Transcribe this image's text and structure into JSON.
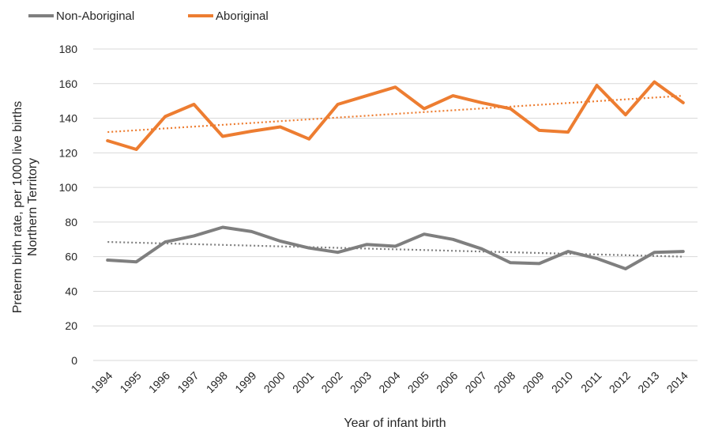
{
  "chart_data": {
    "type": "line",
    "title": "",
    "xlabel": "Year of infant birth",
    "ylabel": [
      "Preterm birth rate, per 1000 live births",
      "Northern Territory"
    ],
    "categories": [
      "1994",
      "1995",
      "1996",
      "1997",
      "1998",
      "1999",
      "2000",
      "2001",
      "2002",
      "2003",
      "2004",
      "2005",
      "2006",
      "2007",
      "2008",
      "2009",
      "2010",
      "2011",
      "2012",
      "2013",
      "2014"
    ],
    "ylim": [
      0,
      180
    ],
    "yticks": [
      "0",
      "20",
      "40",
      "60",
      "80",
      "100",
      "120",
      "140",
      "160",
      "180"
    ],
    "grid": true,
    "legend_position": "top-left",
    "series": [
      {
        "name": "Non-Aboriginal",
        "color": "#7f7f7f",
        "values": [
          58,
          57,
          68.5,
          72,
          77,
          74.5,
          69,
          65,
          62.5,
          67,
          66,
          73,
          70,
          64.5,
          56.5,
          56,
          63,
          59,
          53,
          62.5,
          63
        ],
        "trendline": {
          "style": "dotted",
          "start": 68.5,
          "end": 60
        }
      },
      {
        "name": "Aboriginal",
        "color": "#ed7d31",
        "values": [
          127,
          122,
          141,
          148,
          129.5,
          132.5,
          135,
          128,
          148,
          153,
          158,
          145.5,
          153,
          149,
          145.5,
          133,
          132,
          159,
          142,
          161,
          149
        ],
        "trendline": {
          "style": "dotted",
          "start": 132,
          "end": 153
        }
      }
    ]
  }
}
